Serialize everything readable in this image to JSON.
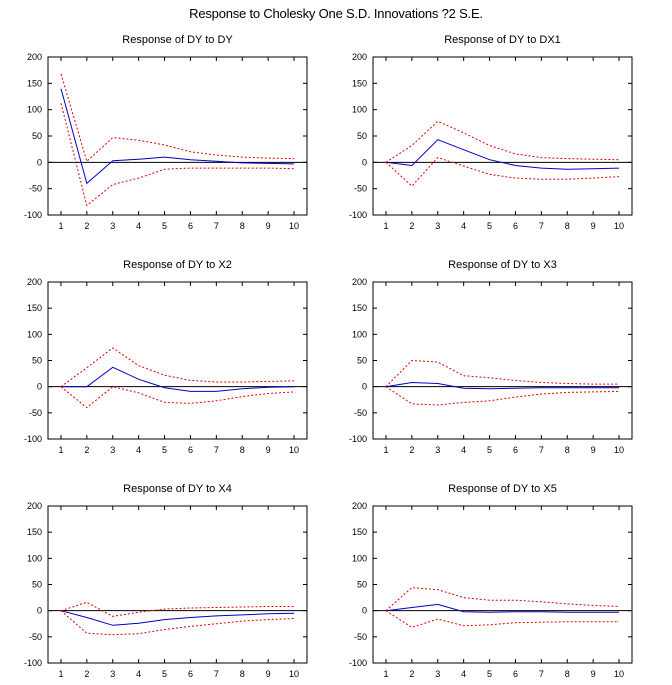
{
  "title": "Response to Cholesky One S.D. Innovations ?2 S.E.",
  "colors": {
    "response": "#0000c8",
    "band": "#e00000",
    "zero": "#000000",
    "frame": "#000000"
  },
  "chart_data": [
    {
      "type": "line",
      "title": "Response of DY to DY",
      "x": [
        1,
        2,
        3,
        4,
        5,
        6,
        7,
        8,
        9,
        10
      ],
      "ylim": [
        -100,
        200
      ],
      "yticks": [
        -100,
        -50,
        0,
        50,
        100,
        150,
        200
      ],
      "series": [
        {
          "name": "response",
          "values": [
            140,
            -40,
            3,
            6,
            10,
            5,
            2,
            -1,
            -2,
            -3
          ]
        },
        {
          "name": "upper",
          "values": [
            168,
            2,
            47,
            42,
            33,
            20,
            14,
            10,
            8,
            7
          ]
        },
        {
          "name": "lower",
          "values": [
            112,
            -82,
            -42,
            -30,
            -13,
            -11,
            -11,
            -11,
            -11,
            -12
          ]
        }
      ]
    },
    {
      "type": "line",
      "title": "Response of DY to DX1",
      "x": [
        1,
        2,
        3,
        4,
        5,
        6,
        7,
        8,
        9,
        10
      ],
      "ylim": [
        -100,
        200
      ],
      "yticks": [
        -100,
        -50,
        0,
        50,
        100,
        150,
        200
      ],
      "series": [
        {
          "name": "response",
          "values": [
            0,
            -6,
            43,
            24,
            5,
            -6,
            -11,
            -13,
            -12,
            -11
          ]
        },
        {
          "name": "upper",
          "values": [
            0,
            32,
            78,
            56,
            32,
            16,
            9,
            7,
            6,
            5
          ]
        },
        {
          "name": "lower",
          "values": [
            0,
            -45,
            9,
            -7,
            -23,
            -30,
            -32,
            -32,
            -30,
            -27
          ]
        }
      ]
    },
    {
      "type": "line",
      "title": "Response of DY to X2",
      "x": [
        1,
        2,
        3,
        4,
        5,
        6,
        7,
        8,
        9,
        10
      ],
      "ylim": [
        -100,
        200
      ],
      "yticks": [
        -100,
        -50,
        0,
        50,
        100,
        150,
        200
      ],
      "series": [
        {
          "name": "response",
          "values": [
            0,
            0,
            37,
            14,
            -2,
            -9,
            -9,
            -4,
            -1,
            0
          ]
        },
        {
          "name": "upper",
          "values": [
            0,
            36,
            74,
            40,
            22,
            12,
            9,
            9,
            10,
            11
          ]
        },
        {
          "name": "lower",
          "values": [
            0,
            -40,
            0,
            -12,
            -30,
            -32,
            -27,
            -19,
            -13,
            -10
          ]
        }
      ]
    },
    {
      "type": "line",
      "title": "Response of DY to X3",
      "x": [
        1,
        2,
        3,
        4,
        5,
        6,
        7,
        8,
        9,
        10
      ],
      "ylim": [
        -100,
        200
      ],
      "yticks": [
        -100,
        -50,
        0,
        50,
        100,
        150,
        200
      ],
      "series": [
        {
          "name": "response",
          "values": [
            0,
            8,
            6,
            -3,
            -4,
            -3,
            -2,
            -2,
            -2,
            -2
          ]
        },
        {
          "name": "upper",
          "values": [
            0,
            50,
            47,
            21,
            17,
            12,
            8,
            6,
            5,
            5
          ]
        },
        {
          "name": "lower",
          "values": [
            0,
            -33,
            -35,
            -30,
            -27,
            -20,
            -14,
            -11,
            -10,
            -9
          ]
        }
      ]
    },
    {
      "type": "line",
      "title": "Response of DY to X4",
      "x": [
        1,
        2,
        3,
        4,
        5,
        6,
        7,
        8,
        9,
        10
      ],
      "ylim": [
        -100,
        200
      ],
      "yticks": [
        -100,
        -50,
        0,
        50,
        100,
        150,
        200
      ],
      "series": [
        {
          "name": "response",
          "values": [
            0,
            -13,
            -28,
            -24,
            -17,
            -13,
            -10,
            -8,
            -6,
            -5
          ]
        },
        {
          "name": "upper",
          "values": [
            0,
            16,
            -11,
            -3,
            3,
            5,
            6,
            7,
            8,
            8
          ]
        },
        {
          "name": "lower",
          "values": [
            0,
            -43,
            -46,
            -44,
            -36,
            -30,
            -25,
            -20,
            -17,
            -15
          ]
        }
      ]
    },
    {
      "type": "line",
      "title": "Response of DY to X5",
      "x": [
        1,
        2,
        3,
        4,
        5,
        6,
        7,
        8,
        9,
        10
      ],
      "ylim": [
        -100,
        200
      ],
      "yticks": [
        -100,
        -50,
        0,
        50,
        100,
        150,
        200
      ],
      "series": [
        {
          "name": "response",
          "values": [
            0,
            6,
            12,
            -2,
            -3,
            -2,
            -2,
            -3,
            -3,
            -3
          ]
        },
        {
          "name": "upper",
          "values": [
            0,
            44,
            40,
            25,
            20,
            20,
            17,
            13,
            10,
            8
          ]
        },
        {
          "name": "lower",
          "values": [
            0,
            -32,
            -16,
            -29,
            -27,
            -23,
            -22,
            -21,
            -21,
            -21
          ]
        }
      ]
    }
  ]
}
